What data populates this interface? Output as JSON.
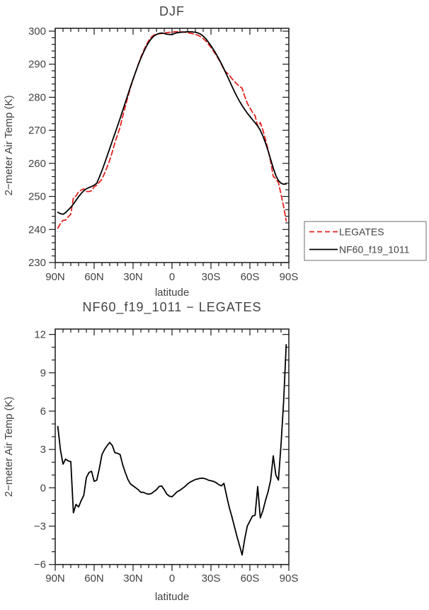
{
  "page": {
    "background": "#ffffff"
  },
  "colors": {
    "frame": "#1a1a1a",
    "text": "#434343",
    "legates_red": "#e3211d",
    "model_black": "#000000",
    "legend_border": "#6e6e6e"
  },
  "chart_data": [
    {
      "id": "djf-temp",
      "type": "line",
      "title": "DJF",
      "xlabel": "latitude",
      "ylabel": "2−meter Air Temp (K)",
      "xlim": [
        90,
        -90
      ],
      "ylim": [
        230,
        300
      ],
      "x_ticks": [
        {
          "v": 90,
          "label": "90N"
        },
        {
          "v": 60,
          "label": "60N"
        },
        {
          "v": 30,
          "label": "30N"
        },
        {
          "v": 0,
          "label": "0"
        },
        {
          "v": -30,
          "label": "30S"
        },
        {
          "v": -60,
          "label": "60S"
        },
        {
          "v": -90,
          "label": "90S"
        }
      ],
      "x_minor_step": 6,
      "y_ticks": [
        {
          "v": 230,
          "label": "230"
        },
        {
          "v": 240,
          "label": "240"
        },
        {
          "v": 250,
          "label": "250"
        },
        {
          "v": 260,
          "label": "260"
        },
        {
          "v": 270,
          "label": "270"
        },
        {
          "v": 280,
          "label": "280"
        },
        {
          "v": 290,
          "label": "290"
        },
        {
          "v": 300,
          "label": "300"
        }
      ],
      "y_minor_step": 2,
      "grid": false,
      "legend_position": "outside-right",
      "x": [
        88,
        86,
        84,
        82,
        80,
        78,
        76,
        74,
        72,
        70,
        68,
        66,
        64,
        62,
        60,
        58,
        56,
        54,
        52,
        50,
        48,
        46,
        44,
        42,
        40,
        38,
        36,
        34,
        32,
        30,
        28,
        26,
        24,
        22,
        20,
        18,
        16,
        14,
        12,
        10,
        8,
        6,
        4,
        2,
        0,
        -2,
        -4,
        -6,
        -8,
        -10,
        -12,
        -14,
        -16,
        -18,
        -20,
        -22,
        -24,
        -26,
        -28,
        -30,
        -32,
        -34,
        -36,
        -38,
        -40,
        -42,
        -44,
        -46,
        -48,
        -50,
        -52,
        -54,
        -56,
        -58,
        -60,
        -62,
        -64,
        -66,
        -68,
        -70,
        -72,
        -74,
        -76,
        -78,
        -80,
        -82,
        -84,
        -86,
        -88
      ],
      "series": [
        {
          "name": "LEGATES",
          "color": "#e3211d",
          "dashed": true,
          "values": [
            240.4,
            241.8,
            242.75,
            242.85,
            243.8,
            244.65,
            249.65,
            250.1,
            251.4,
            251.9,
            252.3,
            251.5,
            251.5,
            251.7,
            252.9,
            253.4,
            254.3,
            255.2,
            257.0,
            258.9,
            260.95,
            263.5,
            266.25,
            268.6,
            271.0,
            274.2,
            277.2,
            280.15,
            282.9,
            285.35,
            287.7,
            289.95,
            292.15,
            293.95,
            295.65,
            297.1,
            298.15,
            298.8,
            299.15,
            299.2,
            299.3,
            299.45,
            299.55,
            299.65,
            299.65,
            299.8,
            299.8,
            299.8,
            299.75,
            299.65,
            299.5,
            299.35,
            299.2,
            299.0,
            298.75,
            298.35,
            297.75,
            297.0,
            296.1,
            295.05,
            293.9,
            292.7,
            291.45,
            290.05,
            288.25,
            287.5,
            286.7,
            285.7,
            284.8,
            284.0,
            283.3,
            282.75,
            280.3,
            278.2,
            276.8,
            275.4,
            274.45,
            271.2,
            272.35,
            270.1,
            267.2,
            264.1,
            260.6,
            256.1,
            255.3,
            254.2,
            250.6,
            246.9,
            242.6
          ]
        },
        {
          "name": "NF60_f19_1011",
          "color": "#000000",
          "dashed": false,
          "values": [
            245.2,
            244.8,
            244.6,
            245.1,
            245.9,
            246.7,
            247.7,
            248.8,
            249.9,
            250.9,
            251.7,
            252.3,
            252.7,
            253.0,
            253.4,
            254.0,
            255.8,
            257.8,
            260.0,
            262.2,
            264.5,
            266.8,
            269.0,
            271.3,
            273.6,
            276.0,
            278.4,
            280.8,
            283.2,
            285.5,
            287.7,
            289.8,
            291.8,
            293.6,
            295.2,
            296.6,
            297.7,
            298.5,
            299.0,
            299.3,
            299.45,
            299.3,
            299.05,
            299.0,
            298.95,
            299.3,
            299.5,
            299.6,
            299.7,
            299.75,
            299.8,
            299.8,
            299.75,
            299.65,
            299.45,
            299.1,
            298.5,
            297.7,
            296.7,
            295.6,
            294.4,
            293.1,
            291.7,
            290.2,
            288.6,
            286.9,
            285.2,
            283.5,
            281.8,
            280.2,
            278.8,
            277.5,
            276.3,
            275.2,
            274.2,
            273.2,
            272.3,
            271.3,
            270.0,
            268.3,
            266.2,
            263.8,
            261.2,
            258.6,
            256.3,
            254.8,
            254.0,
            253.7,
            253.8
          ]
        }
      ],
      "legend": {
        "entries": [
          {
            "label": "LEGATES",
            "color": "#e3211d",
            "dashed": true
          },
          {
            "label": "NF60_f19_1011",
            "color": "#000000",
            "dashed": false
          }
        ]
      }
    },
    {
      "id": "djf-diff",
      "type": "line",
      "title": "NF60_f19_1011 − LEGATES",
      "xlabel": "latitude",
      "ylabel": "2−meter Air Temp (K)",
      "xlim": [
        90,
        -90
      ],
      "ylim": [
        -6,
        12
      ],
      "x_ticks": [
        {
          "v": 90,
          "label": "90N"
        },
        {
          "v": 60,
          "label": "60N"
        },
        {
          "v": 30,
          "label": "30N"
        },
        {
          "v": 0,
          "label": "0"
        },
        {
          "v": -30,
          "label": "30S"
        },
        {
          "v": -60,
          "label": "60S"
        },
        {
          "v": -90,
          "label": "90S"
        }
      ],
      "x_minor_step": 6,
      "y_ticks": [
        {
          "v": -6,
          "label": "−6"
        },
        {
          "v": -3,
          "label": "−3"
        },
        {
          "v": 0,
          "label": "0"
        },
        {
          "v": 3,
          "label": "3"
        },
        {
          "v": 6,
          "label": "6"
        },
        {
          "v": 9,
          "label": "9"
        },
        {
          "v": 12,
          "label": "12"
        }
      ],
      "y_minor_step": 1,
      "grid": false,
      "x": [
        88,
        86,
        84,
        82,
        80,
        78,
        76,
        74,
        72,
        70,
        68,
        66,
        64,
        62,
        60,
        58,
        56,
        54,
        52,
        50,
        48,
        46,
        44,
        42,
        40,
        38,
        36,
        34,
        32,
        30,
        28,
        26,
        24,
        22,
        20,
        18,
        16,
        14,
        12,
        10,
        8,
        6,
        4,
        2,
        0,
        -2,
        -4,
        -6,
        -8,
        -10,
        -12,
        -14,
        -16,
        -18,
        -20,
        -22,
        -24,
        -26,
        -28,
        -30,
        -32,
        -34,
        -36,
        -38,
        -40,
        -42,
        -44,
        -46,
        -48,
        -50,
        -52,
        -54,
        -56,
        -58,
        -60,
        -62,
        -64,
        -66,
        -68,
        -70,
        -72,
        -74,
        -76,
        -78,
        -80,
        -82,
        -84,
        -86,
        -88
      ],
      "series": [
        {
          "name": "NF60_f19_1011 - LEGATES",
          "color": "#000000",
          "dashed": false,
          "values": [
            4.8,
            3.0,
            1.85,
            2.25,
            2.1,
            2.05,
            -1.95,
            -1.3,
            -1.5,
            -1.0,
            -0.6,
            0.8,
            1.2,
            1.3,
            0.5,
            0.6,
            1.5,
            2.6,
            3.0,
            3.3,
            3.55,
            3.3,
            2.75,
            2.7,
            2.6,
            1.8,
            1.2,
            0.65,
            0.3,
            0.15,
            0.0,
            -0.15,
            -0.35,
            -0.35,
            -0.45,
            -0.5,
            -0.45,
            -0.3,
            -0.15,
            0.1,
            0.15,
            -0.15,
            -0.5,
            -0.65,
            -0.7,
            -0.5,
            -0.3,
            -0.2,
            -0.05,
            0.1,
            0.3,
            0.45,
            0.55,
            0.65,
            0.7,
            0.75,
            0.75,
            0.7,
            0.6,
            0.55,
            0.5,
            0.4,
            0.25,
            0.15,
            0.35,
            -0.6,
            -1.5,
            -2.2,
            -3.0,
            -3.8,
            -4.5,
            -5.25,
            -4.0,
            -3.0,
            -2.6,
            -2.2,
            -2.15,
            0.1,
            -2.35,
            -1.8,
            -1.0,
            -0.3,
            0.6,
            2.5,
            1.0,
            0.6,
            3.4,
            6.8,
            11.2
          ]
        }
      ]
    }
  ]
}
